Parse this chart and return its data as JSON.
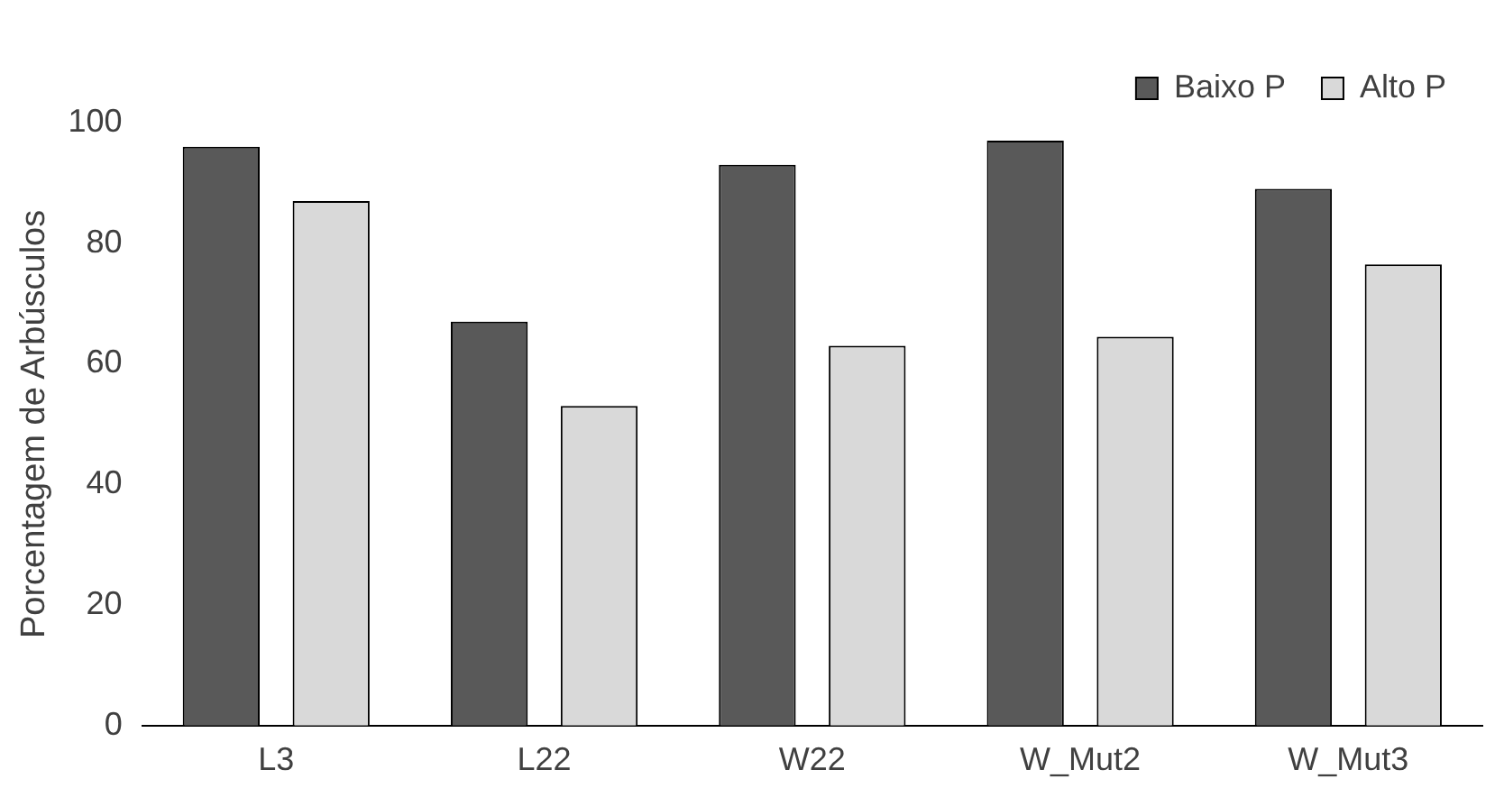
{
  "chart_data": {
    "type": "bar",
    "ylabel": "Porcentagem de Arbúsculos",
    "categories": [
      "L3",
      "L22",
      "W22",
      "W_Mut2",
      "W_Mut3"
    ],
    "series": [
      {
        "name": "Baixo P",
        "color": "#595959",
        "values": [
          96,
          67,
          93,
          97,
          89
        ]
      },
      {
        "name": "Alto P",
        "color": "#d9d9d9",
        "values": [
          87,
          53,
          63,
          64.5,
          76.5
        ]
      }
    ],
    "ylim": [
      0,
      100
    ],
    "yticks": [
      0,
      20,
      40,
      60,
      80,
      100
    ],
    "grid": false,
    "legend": "top right"
  }
}
